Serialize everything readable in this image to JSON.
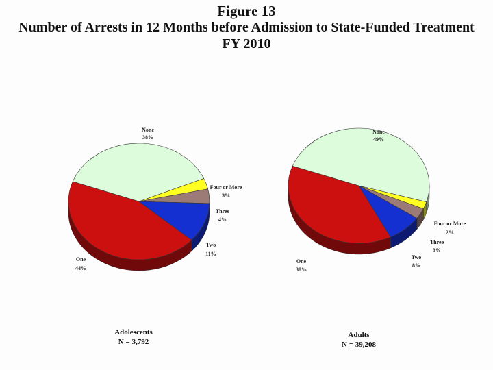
{
  "figure": {
    "label": "Figure 13",
    "title": "Number of Arrests in 12 Months before Admission to State-Funded Treatment",
    "subtitle": "FY 2010"
  },
  "colors": {
    "none": "#dcfcdc",
    "four_or_more": "#ffff22",
    "three": "#9c7b76",
    "two": "#1530d0",
    "one": "#cc1010"
  },
  "chart_data": [
    {
      "type": "pie",
      "name": "Adolescents",
      "n_label": "N = 3,792",
      "slices": [
        {
          "label": "None",
          "value": 38,
          "pct": "38%",
          "color_key": "none"
        },
        {
          "label": "Four or More",
          "value": 3,
          "pct": "3%",
          "color_key": "four_or_more"
        },
        {
          "label": "Three",
          "value": 4,
          "pct": "4%",
          "color_key": "three"
        },
        {
          "label": "Two",
          "value": 11,
          "pct": "11%",
          "color_key": "two"
        },
        {
          "label": "One",
          "value": 44,
          "pct": "44%",
          "color_key": "one"
        }
      ]
    },
    {
      "type": "pie",
      "name": "Adults",
      "n_label": "N = 39,208",
      "slices": [
        {
          "label": "None",
          "value": 49,
          "pct": "49%",
          "color_key": "none"
        },
        {
          "label": "Four or More",
          "value": 2,
          "pct": "2%",
          "color_key": "four_or_more"
        },
        {
          "label": "Three",
          "value": 3,
          "pct": "3%",
          "color_key": "three"
        },
        {
          "label": "Two",
          "value": 8,
          "pct": "8%",
          "color_key": "two"
        },
        {
          "label": "One",
          "value": 38,
          "pct": "38%",
          "color_key": "one"
        }
      ]
    }
  ]
}
